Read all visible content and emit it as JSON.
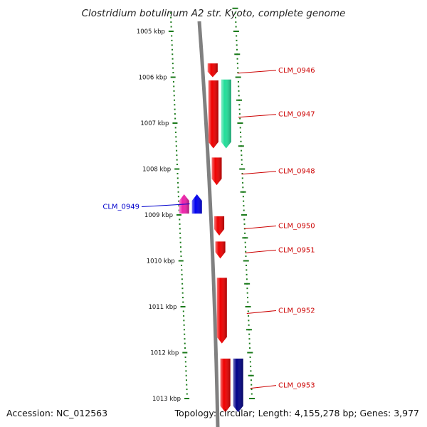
{
  "title": "Clostridium botulinum A2 str. Kyoto, complete genome",
  "footer": {
    "accession": "Accession: NC_012563",
    "stats": "Topology: circular; Length: 4,155,278 bp; Genes: 3,977"
  },
  "colors": {
    "backbone": "#808080",
    "tick": "#1a7a1a",
    "forward_label": "#cc0000",
    "reverse_label": "#0000cc",
    "gene_red": "#ee0000",
    "gene_teal": "#22dd99",
    "gene_magenta": "#ee22aa",
    "gene_blue": "#0000ee",
    "gene_navy": "#000088"
  },
  "ticks": [
    {
      "label": "1005 kbp",
      "kbp": 1005
    },
    {
      "label": "1006 kbp",
      "kbp": 1006
    },
    {
      "label": "1007 kbp",
      "kbp": 1007
    },
    {
      "label": "1008 kbp",
      "kbp": 1008
    },
    {
      "label": "1009 kbp",
      "kbp": 1009
    },
    {
      "label": "1010 kbp",
      "kbp": 1010
    },
    {
      "label": "1011 kbp",
      "kbp": 1011
    },
    {
      "label": "1012 kbp",
      "kbp": 1012
    },
    {
      "label": "1013 kbp",
      "kbp": 1013
    }
  ],
  "genes": [
    {
      "name": "CLM_0946",
      "strand": "forward",
      "lane": 0,
      "start_kbp": 1005.7,
      "end_kbp": 1006.0,
      "color": "#ee0000",
      "labeled": true
    },
    {
      "name": "CLM_0947",
      "strand": "forward",
      "lane": 0,
      "start_kbp": 1006.07,
      "end_kbp": 1007.55,
      "color": "#ee0000",
      "labeled": true
    },
    {
      "name": "",
      "strand": "forward",
      "lane": 1,
      "start_kbp": 1006.05,
      "end_kbp": 1007.55,
      "color": "#22dd99",
      "labeled": false
    },
    {
      "name": "CLM_0948",
      "strand": "forward",
      "lane": 0,
      "start_kbp": 1007.75,
      "end_kbp": 1008.35,
      "color": "#ee0000",
      "labeled": true
    },
    {
      "name": "CLM_0949",
      "strand": "reverse",
      "lane": 0,
      "start_kbp": 1008.55,
      "end_kbp": 1008.97,
      "color": "#0000ee",
      "labeled": true
    },
    {
      "name": "",
      "strand": "reverse",
      "lane": 1,
      "start_kbp": 1008.55,
      "end_kbp": 1008.97,
      "color": "#ee22aa",
      "labeled": false
    },
    {
      "name": "CLM_0950",
      "strand": "forward",
      "lane": 0,
      "start_kbp": 1009.03,
      "end_kbp": 1009.45,
      "color": "#ee0000",
      "labeled": true
    },
    {
      "name": "CLM_0951",
      "strand": "forward",
      "lane": 0,
      "start_kbp": 1009.58,
      "end_kbp": 1009.95,
      "color": "#ee0000",
      "labeled": true
    },
    {
      "name": "CLM_0952",
      "strand": "forward",
      "lane": 0,
      "start_kbp": 1010.37,
      "end_kbp": 1011.8,
      "color": "#ee0000",
      "labeled": true
    },
    {
      "name": "CLM_0953",
      "strand": "forward",
      "lane": 0,
      "start_kbp": 1012.13,
      "end_kbp": 1013.3,
      "color": "#ee0000",
      "labeled": true
    },
    {
      "name": "",
      "strand": "forward",
      "lane": 1,
      "start_kbp": 1012.13,
      "end_kbp": 1013.3,
      "color": "#000088",
      "labeled": false
    }
  ]
}
